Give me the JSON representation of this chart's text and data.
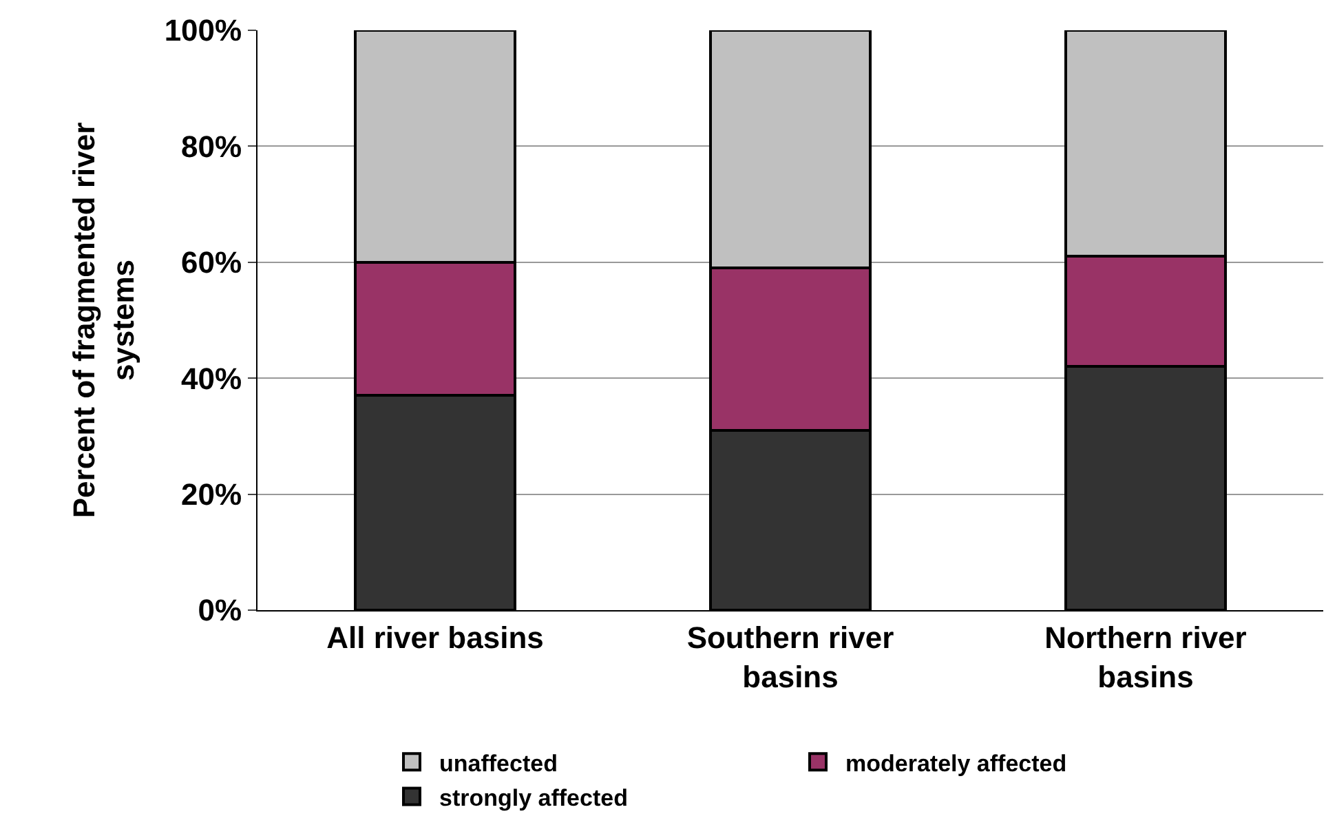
{
  "chart_data": {
    "type": "bar",
    "stacked": true,
    "ylabel": "Percent of fragmented river systems",
    "categories": [
      "All river basins",
      "Southern river basins",
      "Northern river basins"
    ],
    "series": [
      {
        "name": "strongly affected",
        "color": "#333333",
        "values": [
          37,
          31,
          42
        ]
      },
      {
        "name": "moderately affected",
        "color": "#993366",
        "values": [
          23,
          28,
          19
        ]
      },
      {
        "name": "unaffected",
        "color": "#c0c0c0",
        "values": [
          40,
          41,
          39
        ]
      }
    ],
    "ylim": [
      0,
      100
    ],
    "yticks": [
      {
        "value": 0,
        "label": "0%"
      },
      {
        "value": 20,
        "label": "20%"
      },
      {
        "value": 40,
        "label": "40%"
      },
      {
        "value": 60,
        "label": "60%"
      },
      {
        "value": 80,
        "label": "80%"
      },
      {
        "value": 100,
        "label": "100%"
      }
    ],
    "grid": "y",
    "legend": "bottom"
  }
}
